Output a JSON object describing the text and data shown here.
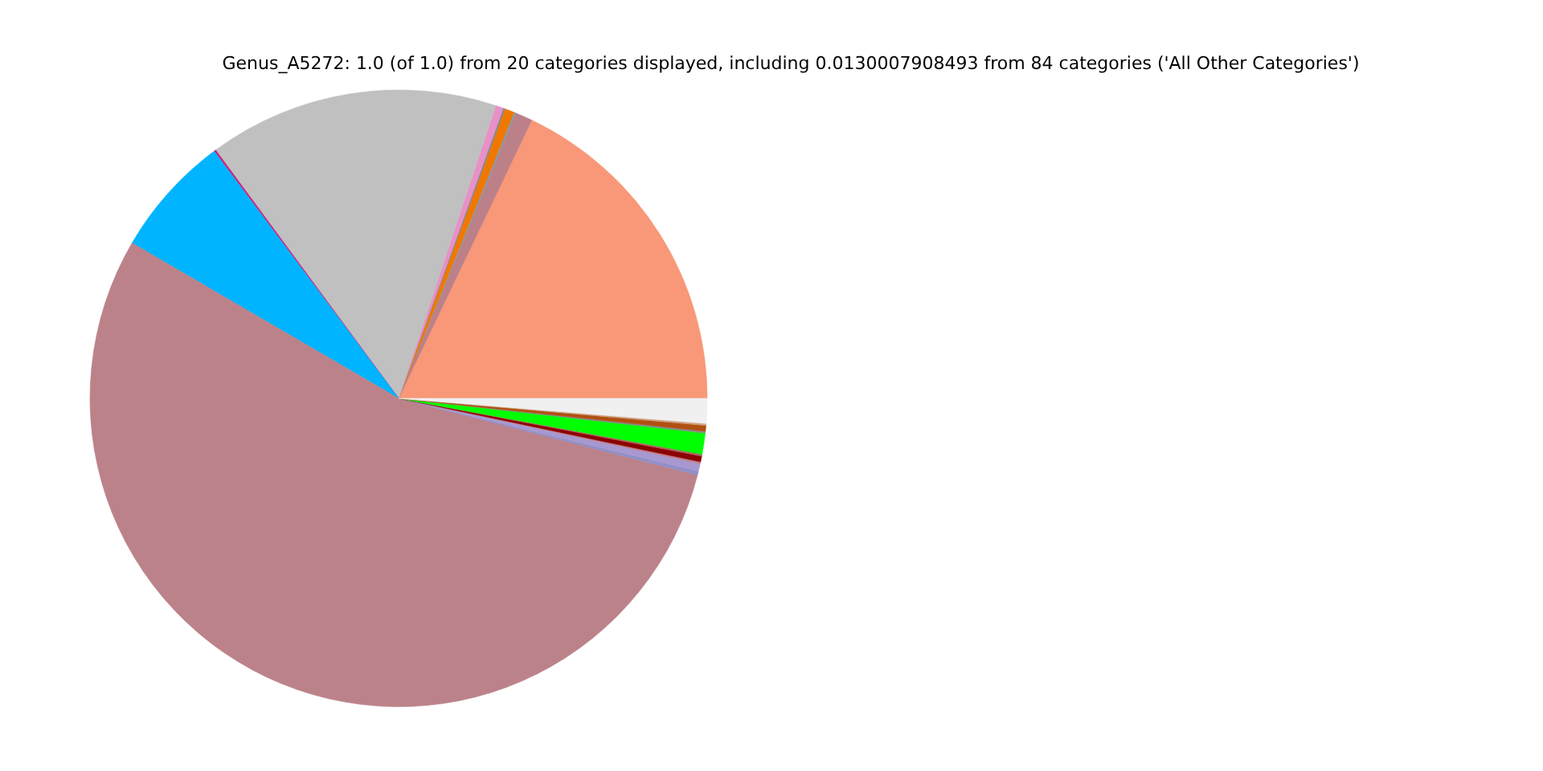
{
  "chart_data": {
    "type": "pie",
    "title": "Genus_A5272: 1.0 (of 1.0) from 20 categories displayed, including 0.0130007908493 from 84 categories ('All Other Categories')",
    "categories": [
      null,
      null,
      null,
      null,
      null,
      null,
      null,
      null,
      null,
      null,
      null,
      null,
      null,
      null,
      null,
      null,
      null,
      null,
      null,
      null
    ],
    "values": [
      17.9,
      0.9,
      0.1,
      0.5,
      0.1,
      0.4,
      15.2,
      0.1,
      6.4,
      54.4,
      0.2,
      0.4,
      0.1,
      0.3,
      0.1,
      1.1,
      0.1,
      0.3,
      0.1,
      1.3
    ],
    "colors": [
      "#f89878",
      "#bc8088",
      "#8899aa",
      "#f07800",
      "#888888",
      "#e890c8",
      "#c0c0c0",
      "#d0207c",
      "#00b4ff",
      "#bc828a",
      "#9090c8",
      "#a898d0",
      "#c08090",
      "#8b0000",
      "#b06060",
      "#00ff00",
      "#888888",
      "#b05010",
      "#d0a080",
      "#f0f0f0"
    ]
  }
}
